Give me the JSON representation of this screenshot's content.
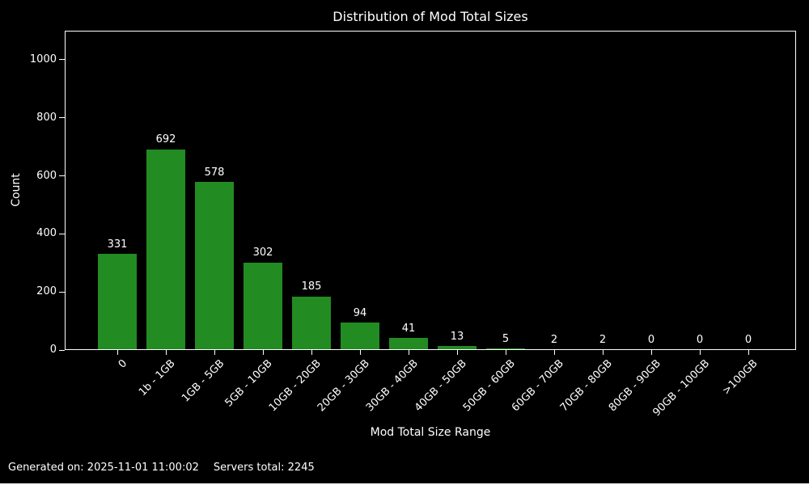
{
  "title": "Distribution of Mod Total Sizes",
  "footer": {
    "generated": "Generated on: 2025-11-01 11:00:02",
    "servers_total": "Servers total: 2245"
  },
  "colors": {
    "background": "#000000",
    "text": "#ffffff",
    "bar": "#228B22"
  },
  "chart_data": {
    "type": "bar",
    "title": "Distribution of Mod Total Sizes",
    "xlabel": "Mod Total Size Range",
    "ylabel": "Count",
    "categories": [
      "0",
      "1b - 1GB",
      "1GB - 5GB",
      "5GB - 10GB",
      "10GB - 20GB",
      "20GB - 30GB",
      "30GB - 40GB",
      "40GB - 50GB",
      "50GB - 60GB",
      "60GB - 70GB",
      "70GB - 80GB",
      "80GB - 90GB",
      "90GB - 100GB",
      ">100GB"
    ],
    "values": [
      331,
      692,
      578,
      302,
      185,
      94,
      41,
      13,
      5,
      2,
      2,
      0,
      0,
      0
    ],
    "value_labels": [
      "331",
      "692",
      "578",
      "302",
      "185",
      "94",
      "41",
      "13",
      "5",
      "2",
      "2",
      "0",
      "0",
      "0"
    ],
    "yticks": [
      0,
      200,
      400,
      600,
      800,
      1000
    ],
    "ylim": [
      0,
      1100
    ],
    "grid": false,
    "legend": null,
    "bar_color": "#228B22",
    "background_color": "#000000",
    "text_color": "#ffffff",
    "x_tick_rotation_deg": 45
  }
}
